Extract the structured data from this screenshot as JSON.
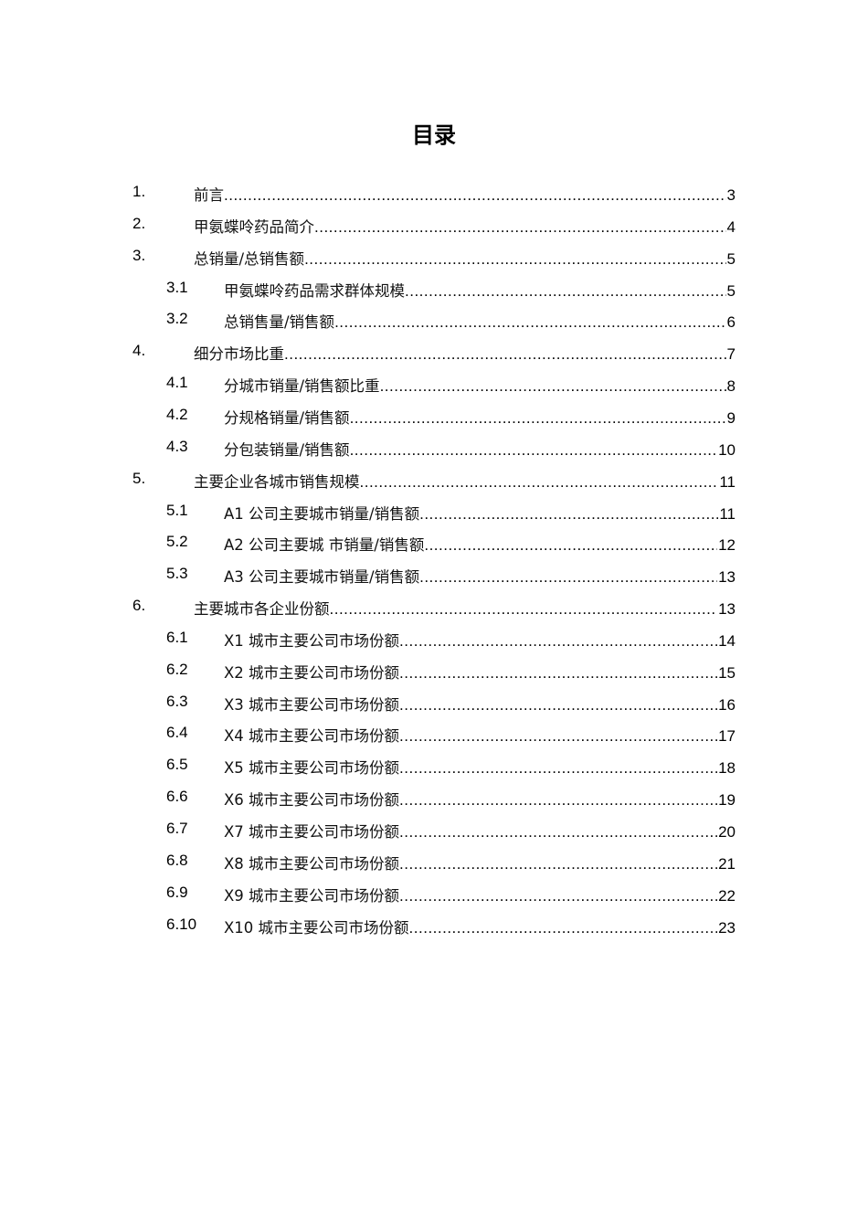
{
  "title": "目录",
  "entries": [
    {
      "num": "1.",
      "label": "前言",
      "page": "3",
      "level": 1
    },
    {
      "num": "2.",
      "label": "甲氨蝶呤药品简介",
      "page": "4",
      "level": 1
    },
    {
      "num": "3.",
      "label": "总销量/总销售额",
      "page": "5",
      "level": 1
    },
    {
      "num": "3.1",
      "label": "甲氨蝶呤药品需求群体规模",
      "page": "5",
      "level": 2
    },
    {
      "num": "3.2",
      "label": "总销售量/销售额",
      "page": "6",
      "level": 2
    },
    {
      "num": "4.",
      "label": "细分市场比重",
      "page": "7",
      "level": 1
    },
    {
      "num": "4.1",
      "label": "分城市销量/销售额比重",
      "page": "8",
      "level": 2
    },
    {
      "num": "4.2",
      "label": "分规格销量/销售额",
      "page": "9",
      "level": 2
    },
    {
      "num": "4.3",
      "label": "分包装销量/销售额",
      "page": "10",
      "level": 2
    },
    {
      "num": "5.",
      "label": "主要企业各城市销售规模",
      "page": "11",
      "level": 1
    },
    {
      "num": "5.1",
      "label": "A1 公司主要城市销量/销售额",
      "page": "11",
      "level": 2
    },
    {
      "num": "5.2",
      "label": "A2 公司主要城  市销量/销售额",
      "page": "12",
      "level": 2
    },
    {
      "num": "5.3",
      "label": "A3 公司主要城市销量/销售额",
      "page": "13",
      "level": 2
    },
    {
      "num": "6.",
      "label": "主要城市各企业份额",
      "page": "13",
      "level": 1
    },
    {
      "num": "6.1",
      "label": "X1 城市主要公司市场份额",
      "page": "14",
      "level": 2
    },
    {
      "num": "6.2",
      "label": "X2 城市主要公司市场份额",
      "page": "15",
      "level": 2
    },
    {
      "num": "6.3",
      "label": "X3 城市主要公司市场份额",
      "page": "16",
      "level": 2
    },
    {
      "num": "6.4",
      "label": "X4 城市主要公司市场份额",
      "page": "17",
      "level": 2
    },
    {
      "num": "6.5",
      "label": "X5 城市主要公司市场份额",
      "page": "18",
      "level": 2
    },
    {
      "num": "6.6",
      "label": "X6 城市主要公司市场份额",
      "page": "19",
      "level": 2
    },
    {
      "num": "6.7",
      "label": "X7 城市主要公司市场份额",
      "page": "20",
      "level": 2
    },
    {
      "num": "6.8",
      "label": "X8 城市主要公司市场份额",
      "page": "21",
      "level": 2
    },
    {
      "num": "6.9",
      "label": "X9 城市主要公司市场份额",
      "page": "22",
      "level": 2
    },
    {
      "num": "6.10",
      "label": "X10 城市主要公司市场份额",
      "page": "23",
      "level": 2
    }
  ]
}
